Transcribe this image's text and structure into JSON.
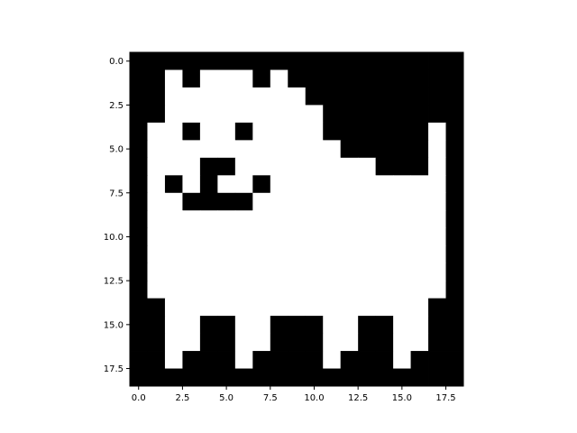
{
  "chart_data": {
    "type": "heatmap",
    "title": "",
    "xlabel": "",
    "ylabel": "",
    "colormap": "gray",
    "colors": {
      "zero": "#000000",
      "one": "#ffffff"
    },
    "xlim": [
      -0.5,
      18.5
    ],
    "ylim": [
      18.5,
      -0.5
    ],
    "x_ticks": [
      0.0,
      2.5,
      5.0,
      7.5,
      10.0,
      12.5,
      15.0,
      17.5
    ],
    "x_tick_labels": [
      "0.0",
      "2.5",
      "5.0",
      "7.5",
      "10.0",
      "12.5",
      "15.0",
      "17.5"
    ],
    "y_ticks": [
      0.0,
      2.5,
      5.0,
      7.5,
      10.0,
      12.5,
      15.0,
      17.5
    ],
    "y_tick_labels": [
      "0.0",
      "2.5",
      "5.0",
      "7.5",
      "10.0",
      "12.5",
      "15.0",
      "17.5"
    ],
    "matrix": [
      [
        0,
        0,
        0,
        0,
        0,
        0,
        0,
        0,
        0,
        0,
        0,
        0,
        0,
        0,
        0,
        0,
        0,
        0,
        0
      ],
      [
        0,
        0,
        1,
        0,
        1,
        1,
        1,
        0,
        1,
        0,
        0,
        0,
        0,
        0,
        0,
        0,
        0,
        0,
        0
      ],
      [
        0,
        0,
        1,
        1,
        1,
        1,
        1,
        1,
        1,
        1,
        0,
        0,
        0,
        0,
        0,
        0,
        0,
        0,
        0
      ],
      [
        0,
        0,
        1,
        1,
        1,
        1,
        1,
        1,
        1,
        1,
        1,
        0,
        0,
        0,
        0,
        0,
        0,
        0,
        0
      ],
      [
        0,
        1,
        1,
        0,
        1,
        1,
        0,
        1,
        1,
        1,
        1,
        0,
        0,
        0,
        0,
        0,
        0,
        1,
        0
      ],
      [
        0,
        1,
        1,
        1,
        1,
        1,
        1,
        1,
        1,
        1,
        1,
        1,
        0,
        0,
        0,
        0,
        0,
        1,
        0
      ],
      [
        0,
        1,
        1,
        1,
        0,
        0,
        1,
        1,
        1,
        1,
        1,
        1,
        1,
        1,
        0,
        0,
        0,
        1,
        0
      ],
      [
        0,
        1,
        0,
        1,
        0,
        1,
        1,
        0,
        1,
        1,
        1,
        1,
        1,
        1,
        1,
        1,
        1,
        1,
        0
      ],
      [
        0,
        1,
        1,
        0,
        0,
        0,
        0,
        1,
        1,
        1,
        1,
        1,
        1,
        1,
        1,
        1,
        1,
        1,
        0
      ],
      [
        0,
        1,
        1,
        1,
        1,
        1,
        1,
        1,
        1,
        1,
        1,
        1,
        1,
        1,
        1,
        1,
        1,
        1,
        0
      ],
      [
        0,
        1,
        1,
        1,
        1,
        1,
        1,
        1,
        1,
        1,
        1,
        1,
        1,
        1,
        1,
        1,
        1,
        1,
        0
      ],
      [
        0,
        1,
        1,
        1,
        1,
        1,
        1,
        1,
        1,
        1,
        1,
        1,
        1,
        1,
        1,
        1,
        1,
        1,
        0
      ],
      [
        0,
        1,
        1,
        1,
        1,
        1,
        1,
        1,
        1,
        1,
        1,
        1,
        1,
        1,
        1,
        1,
        1,
        1,
        0
      ],
      [
        0,
        1,
        1,
        1,
        1,
        1,
        1,
        1,
        1,
        1,
        1,
        1,
        1,
        1,
        1,
        1,
        1,
        1,
        0
      ],
      [
        0,
        0,
        1,
        1,
        1,
        1,
        1,
        1,
        1,
        1,
        1,
        1,
        1,
        1,
        1,
        1,
        1,
        0,
        0
      ],
      [
        0,
        0,
        1,
        1,
        0,
        0,
        1,
        1,
        0,
        0,
        0,
        1,
        1,
        0,
        0,
        1,
        1,
        0,
        0
      ],
      [
        0,
        0,
        1,
        1,
        0,
        0,
        1,
        1,
        0,
        0,
        0,
        1,
        1,
        0,
        0,
        1,
        1,
        0,
        0
      ],
      [
        0,
        0,
        1,
        0,
        0,
        0,
        1,
        0,
        0,
        0,
        0,
        1,
        0,
        0,
        0,
        1,
        0,
        0,
        0
      ],
      [
        0,
        0,
        0,
        0,
        0,
        0,
        0,
        0,
        0,
        0,
        0,
        0,
        0,
        0,
        0,
        0,
        0,
        0,
        0
      ]
    ]
  }
}
